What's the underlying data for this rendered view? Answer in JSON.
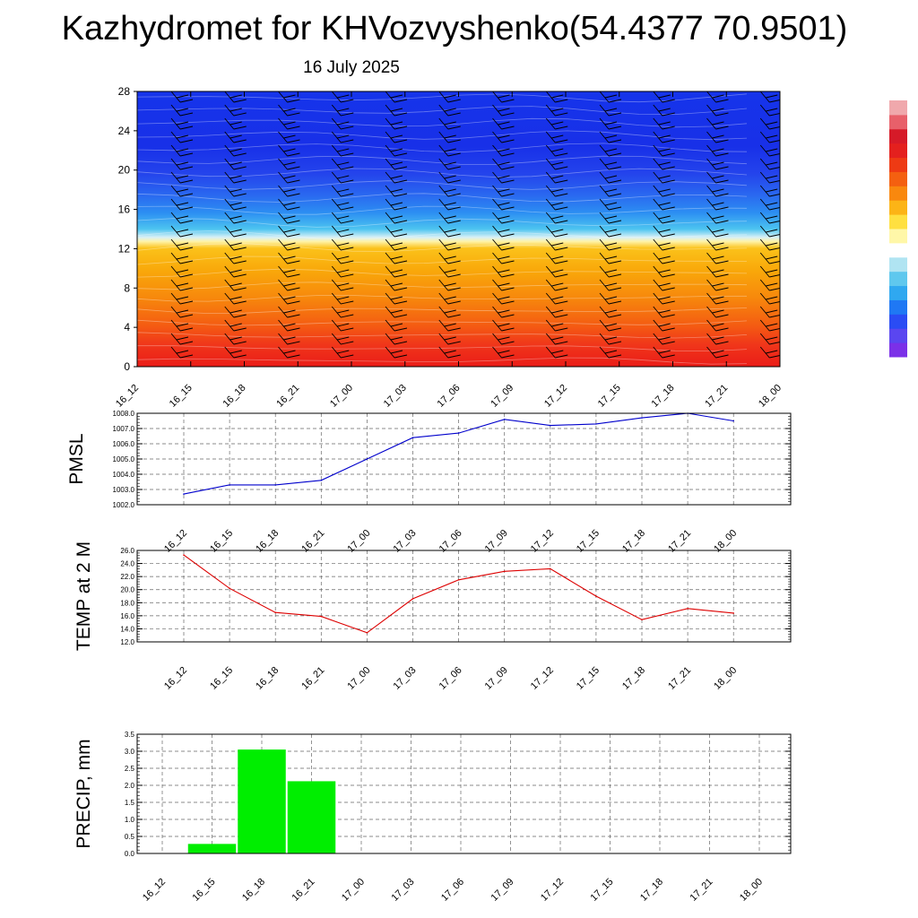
{
  "header": {
    "title": "Kazhydromet for KHVozvyshenko(54.4377 70.9501)",
    "subtitle": "16 July 2025"
  },
  "chart_data": [
    {
      "type": "heatmap",
      "name": "temperature-wind-cross-section",
      "x_categories": [
        "16_12",
        "16_15",
        "16_18",
        "16_21",
        "17_00",
        "17_03",
        "17_06",
        "17_09",
        "17_12",
        "17_15",
        "17_18",
        "17_21",
        "18_00"
      ],
      "y_ticks": [
        0,
        4,
        8,
        12,
        16,
        20,
        24,
        28
      ],
      "ylim": [
        0,
        28
      ],
      "color_bands": [
        {
          "from": 0,
          "to": 4,
          "color": "#e8201c"
        },
        {
          "from": 4,
          "to": 8,
          "color": "#f66a10"
        },
        {
          "from": 8,
          "to": 12.5,
          "color": "#f9b20a"
        },
        {
          "from": 12.5,
          "to": 14,
          "color": "#f5f0a0"
        },
        {
          "from": 14,
          "to": 16.5,
          "color": "#34b4ee"
        },
        {
          "from": 16.5,
          "to": 20,
          "color": "#2a6ff0"
        },
        {
          "from": 20,
          "to": 28,
          "color": "#1432e6"
        }
      ],
      "colorbar_colors": [
        "#7b30e8",
        "#5a46f0",
        "#2a4cf4",
        "#1f78f4",
        "#2fa8f0",
        "#5fc8ee",
        "#b0e4f2",
        "#ffffff",
        "#fff7a8",
        "#ffe040",
        "#fcb416",
        "#f9880e",
        "#f46010",
        "#ee3a14",
        "#e4201e",
        "#d61a28",
        "#e8606a",
        "#f0a8ac"
      ],
      "grid": false
    },
    {
      "type": "line",
      "name": "pmsl",
      "ylabel": "PMSL",
      "categories": [
        "16_12",
        "16_15",
        "16_18",
        "16_21",
        "17_00",
        "17_03",
        "17_06",
        "17_09",
        "17_12",
        "17_15",
        "17_18",
        "17_21",
        "18_00"
      ],
      "values": [
        1002.7,
        1003.3,
        1003.3,
        1003.6,
        1005.0,
        1006.4,
        1006.7,
        1007.6,
        1007.2,
        1007.3,
        1007.7,
        1008.0,
        1007.5
      ],
      "ylim": [
        1002.0,
        1008.0
      ],
      "y_ticks": [
        "1002.0",
        "1003.0",
        "1004.0",
        "1005.0",
        "1006.0",
        "1007.0",
        "1008.0"
      ],
      "color": "#0000cc",
      "grid": true
    },
    {
      "type": "line",
      "name": "temp2m",
      "ylabel": "TEMP at 2 M",
      "categories": [
        "16_12",
        "16_15",
        "16_18",
        "16_21",
        "17_00",
        "17_03",
        "17_06",
        "17_09",
        "17_12",
        "17_15",
        "17_18",
        "17_21",
        "18_00"
      ],
      "values": [
        25.3,
        20.2,
        16.5,
        15.9,
        13.4,
        18.6,
        21.5,
        22.8,
        23.2,
        19.0,
        15.4,
        17.1,
        16.4
      ],
      "ylim": [
        12.0,
        26.0
      ],
      "y_ticks": [
        "12.0",
        "14.0",
        "16.0",
        "18.0",
        "20.0",
        "22.0",
        "24.0",
        "26.0"
      ],
      "color": "#dd0000",
      "grid": true
    },
    {
      "type": "bar",
      "name": "precip",
      "ylabel": "PRECIP, mm",
      "categories": [
        "16_12",
        "16_15",
        "16_18",
        "16_21",
        "17_00",
        "17_03",
        "17_06",
        "17_09",
        "17_12",
        "17_15",
        "17_18",
        "17_21",
        "18_00"
      ],
      "values": [
        0,
        0.28,
        3.05,
        2.12,
        0,
        0,
        0,
        0,
        0,
        0,
        0,
        0,
        0
      ],
      "ylim": [
        0,
        3.5
      ],
      "y_ticks": [
        "0.0",
        "0.5",
        "1.0",
        "1.5",
        "2.0",
        "2.5",
        "3.0",
        "3.5"
      ],
      "color": "#00ee00",
      "grid": true
    }
  ]
}
